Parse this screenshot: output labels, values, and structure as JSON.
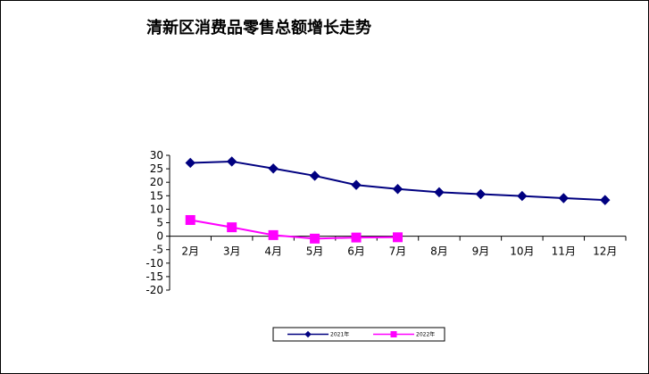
{
  "chart_data": {
    "type": "line",
    "title": "清新区消费品零售总额增长走势",
    "xlabel": "",
    "ylabel": "",
    "categories": [
      "2月",
      "3月",
      "4月",
      "5月",
      "6月",
      "7月",
      "8月",
      "9月",
      "10月",
      "11月",
      "12月"
    ],
    "ylim": [
      -20,
      30
    ],
    "yticks": [
      "30",
      "25",
      "20",
      "15",
      "10",
      "5",
      "0",
      "-5",
      "-10",
      "-15",
      "-20"
    ],
    "ytick_values": [
      30,
      25,
      20,
      15,
      10,
      5,
      0,
      -5,
      -10,
      -15,
      -20
    ],
    "grid": false,
    "legend_position": "bottom",
    "series": [
      {
        "name": "2021年",
        "color": "#000080",
        "marker": "diamond",
        "values": [
          27.2,
          27.7,
          25.1,
          22.4,
          19.0,
          17.5,
          16.3,
          15.6,
          14.9,
          14.1,
          13.4
        ]
      },
      {
        "name": "2022年",
        "color": "#FF00FF",
        "marker": "square",
        "values": [
          6.0,
          3.3,
          0.4,
          -0.9,
          -0.5,
          -0.4,
          null,
          null,
          null,
          null,
          null
        ]
      }
    ]
  }
}
